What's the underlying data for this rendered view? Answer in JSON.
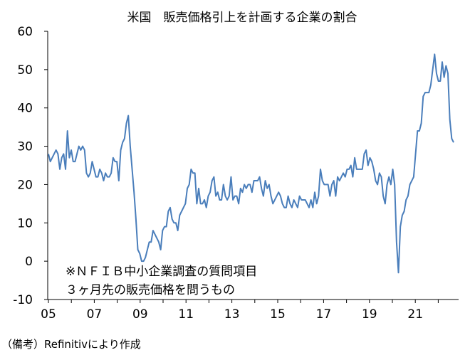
{
  "chart_data": {
    "type": "line",
    "title": "米国　販売価格引上を計画する企業の割合",
    "xlabel": "",
    "ylabel": "",
    "ylim": [
      -10,
      60
    ],
    "y_ticks": [
      "60",
      "50",
      "40",
      "30",
      "20",
      "10",
      "0",
      "-10"
    ],
    "x_ticks": [
      "05",
      "07",
      "09",
      "11",
      "13",
      "15",
      "17",
      "19",
      "21"
    ],
    "x_start_year": 2005,
    "grid": false,
    "legend": "none",
    "line_color": "#4a7ebb",
    "annotation": [
      "※ＮＦＩＢ中小企業調査の質問項目",
      "３ヶ月先の販売価格を問うもの"
    ],
    "source": "（備考）Refinitivにより作成",
    "series": [
      {
        "values": [
          28,
          26,
          27,
          28,
          29,
          28,
          24,
          27,
          28,
          24,
          34,
          27,
          29,
          26,
          26,
          28,
          30,
          29,
          30,
          29,
          23,
          22,
          23,
          26,
          24,
          22,
          22,
          24,
          23,
          21,
          23,
          22,
          22,
          23,
          27,
          26,
          26,
          21,
          29,
          31,
          32,
          36,
          38,
          30,
          24,
          18,
          11,
          3,
          2,
          0,
          0,
          1,
          3,
          5,
          5,
          8,
          7,
          6,
          5,
          3,
          8,
          9,
          9,
          13,
          14,
          11,
          10,
          10,
          8,
          12,
          13,
          14,
          15,
          19,
          20,
          24,
          23,
          23,
          15,
          19,
          15,
          15,
          16,
          14,
          17,
          18,
          21,
          22,
          17,
          18,
          16,
          16,
          20,
          17,
          16,
          17,
          22,
          16,
          17,
          17,
          15,
          19,
          18,
          20,
          19,
          20,
          20,
          18,
          21,
          21,
          21,
          22,
          19,
          17,
          21,
          19,
          20,
          17,
          15,
          16,
          17,
          18,
          17,
          15,
          14,
          14,
          17,
          15,
          14,
          16,
          15,
          14,
          17,
          16,
          16,
          16,
          15,
          14,
          16,
          14,
          18,
          15,
          17,
          24,
          21,
          20,
          20,
          20,
          17,
          20,
          21,
          17,
          22,
          21,
          22,
          23,
          22,
          24,
          24,
          25,
          22,
          27,
          24,
          24,
          24,
          24,
          28,
          29,
          25,
          27,
          26,
          24,
          21,
          20,
          23,
          22,
          17,
          15,
          20,
          22,
          20,
          24,
          20,
          5,
          -3,
          9,
          12,
          13,
          16,
          17,
          20,
          21,
          22,
          28,
          34,
          34,
          36,
          43,
          44,
          44,
          44,
          46,
          50,
          54,
          49,
          47,
          47,
          52,
          48,
          51,
          49,
          37,
          32,
          31
        ]
      }
    ]
  }
}
